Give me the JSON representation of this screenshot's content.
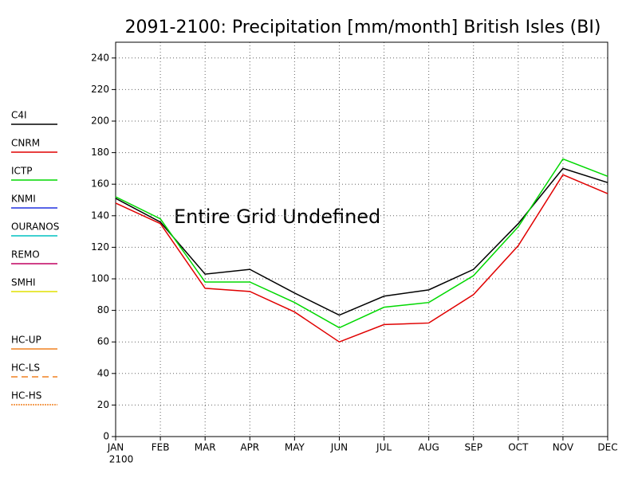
{
  "chart_data": {
    "type": "line",
    "title": "2091-2100: Precipitation [mm/month] British Isles (BI)",
    "annotation": "Entire Grid Undefined",
    "categories": [
      "JAN",
      "FEB",
      "MAR",
      "APR",
      "MAY",
      "JUN",
      "JUL",
      "AUG",
      "SEP",
      "OCT",
      "NOV",
      "DEC"
    ],
    "x_sublabel": "2100",
    "ylim": [
      0,
      250
    ],
    "yticks": [
      0,
      20,
      40,
      60,
      80,
      100,
      120,
      140,
      160,
      180,
      200,
      220,
      240
    ],
    "grid": true,
    "series": [
      {
        "name": "C4I",
        "color": "#000000",
        "values": [
          151,
          136,
          103,
          106,
          91,
          77,
          89,
          93,
          106,
          135,
          170,
          161
        ]
      },
      {
        "name": "CNRM",
        "color": "#e00000",
        "values": [
          148,
          135,
          94,
          92,
          79,
          60,
          71,
          72,
          90,
          121,
          166,
          154
        ]
      },
      {
        "name": "ICTP",
        "color": "#00d800",
        "values": [
          152,
          138,
          98,
          98,
          85,
          69,
          82,
          85,
          102,
          133,
          176,
          165
        ]
      },
      {
        "name": "KNMI",
        "color": "#2030e0",
        "values": [
          null,
          null,
          null,
          null,
          null,
          null,
          null,
          null,
          null,
          null,
          null,
          null
        ]
      },
      {
        "name": "OURANOS",
        "color": "#00c0c0",
        "values": [
          null,
          null,
          null,
          null,
          null,
          null,
          null,
          null,
          null,
          null,
          null,
          null
        ]
      },
      {
        "name": "REMO",
        "color": "#c00060",
        "values": [
          null,
          null,
          null,
          null,
          null,
          null,
          null,
          null,
          null,
          null,
          null,
          null
        ]
      },
      {
        "name": "SMHI",
        "color": "#e0e000",
        "values": [
          null,
          null,
          null,
          null,
          null,
          null,
          null,
          null,
          null,
          null,
          null,
          null
        ]
      },
      {
        "name": "HC-UP",
        "color": "#f08020",
        "values": [
          null,
          null,
          null,
          null,
          null,
          null,
          null,
          null,
          null,
          null,
          null,
          null
        ]
      },
      {
        "name": "HC-LS",
        "color": "#f08020",
        "dash": "dashed",
        "values": [
          null,
          null,
          null,
          null,
          null,
          null,
          null,
          null,
          null,
          null,
          null,
          null
        ]
      },
      {
        "name": "HC-HS",
        "color": "#f08020",
        "dash": "dotted",
        "values": [
          null,
          null,
          null,
          null,
          null,
          null,
          null,
          null,
          null,
          null,
          null,
          null
        ]
      }
    ]
  }
}
